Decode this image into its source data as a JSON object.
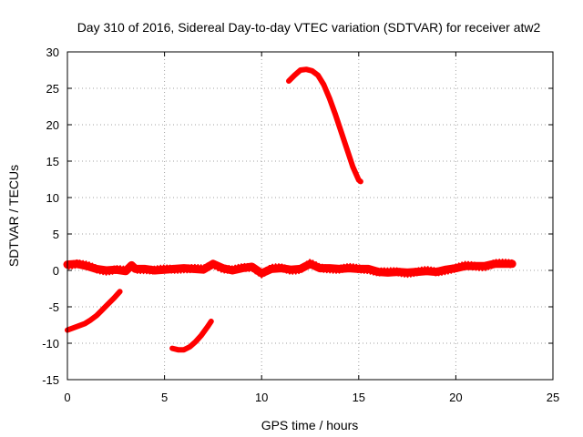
{
  "chart_data": {
    "type": "line",
    "title": "Day 310 of 2016, Sidereal Day-to-day VTEC variation (SDTVAR) for receiver atw2",
    "xlabel": "GPS time / hours",
    "ylabel": "SDTVAR / TECUs",
    "xlim": [
      0,
      25
    ],
    "ylim": [
      -15,
      30
    ],
    "xticks": [
      0,
      5,
      10,
      15,
      20,
      25
    ],
    "yticks": [
      -15,
      -10,
      -5,
      0,
      5,
      10,
      15,
      20,
      25,
      30
    ],
    "grid": true,
    "color": "#ff0000",
    "series": [
      {
        "name": "near-zero band",
        "band_halfwidth": 0.6,
        "x": [
          0.0,
          0.5,
          1.0,
          1.5,
          2.0,
          2.5,
          3.0,
          3.3,
          3.5,
          4.0,
          4.5,
          5.0,
          5.5,
          6.0,
          6.5,
          7.0,
          7.5,
          8.0,
          8.5,
          9.0,
          9.5,
          10.0,
          10.5,
          11.0,
          11.5,
          12.0,
          12.5,
          13.0,
          13.5,
          14.0,
          14.5,
          15.0,
          15.5,
          16.0,
          16.5,
          17.0,
          17.5,
          18.0,
          18.5,
          19.0,
          19.5,
          20.0,
          20.5,
          21.0,
          21.5,
          22.0,
          22.5,
          22.9
        ],
        "y": [
          0.8,
          0.9,
          0.6,
          0.2,
          0.0,
          0.1,
          -0.1,
          0.7,
          0.2,
          0.2,
          0.0,
          0.1,
          0.2,
          0.3,
          0.2,
          0.1,
          0.9,
          0.3,
          0.0,
          0.3,
          0.5,
          -0.4,
          0.2,
          0.3,
          0.1,
          0.2,
          0.9,
          0.3,
          0.3,
          0.2,
          0.3,
          0.2,
          0.2,
          -0.2,
          -0.3,
          -0.2,
          -0.3,
          -0.2,
          -0.1,
          -0.2,
          0.1,
          0.3,
          0.6,
          0.6,
          0.6,
          0.9,
          0.9,
          0.9
        ]
      },
      {
        "name": "arc 0-2.7h",
        "x": [
          0.0,
          0.3,
          0.6,
          0.9,
          1.2,
          1.5,
          1.8,
          2.1,
          2.4,
          2.7
        ],
        "y": [
          -8.2,
          -7.9,
          -7.6,
          -7.3,
          -6.8,
          -6.2,
          -5.4,
          -4.6,
          -3.8,
          -2.9
        ]
      },
      {
        "name": "arc 5.4-7.4h",
        "x": [
          5.4,
          5.7,
          6.0,
          6.3,
          6.6,
          6.9,
          7.2,
          7.4
        ],
        "y": [
          -10.7,
          -10.9,
          -10.9,
          -10.5,
          -9.8,
          -8.9,
          -7.8,
          -7.0
        ]
      },
      {
        "name": "arc 11.4-15.1h",
        "x": [
          11.4,
          11.7,
          12.0,
          12.3,
          12.6,
          12.9,
          13.2,
          13.5,
          13.8,
          14.1,
          14.4,
          14.7,
          15.0,
          15.1
        ],
        "y": [
          26.0,
          26.8,
          27.5,
          27.6,
          27.4,
          26.8,
          25.5,
          23.6,
          21.4,
          19.0,
          16.6,
          14.2,
          12.4,
          12.2
        ]
      }
    ]
  }
}
